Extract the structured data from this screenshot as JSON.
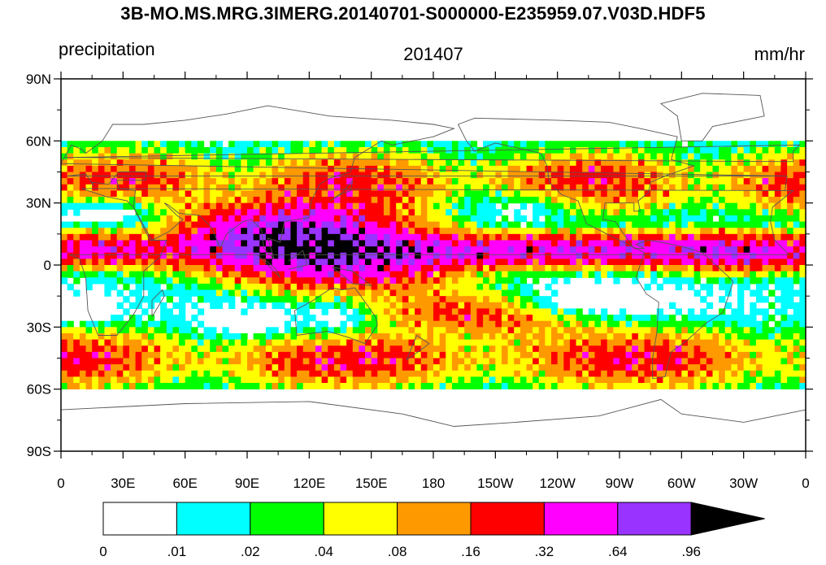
{
  "map": {
    "title": "3B-MO.MS.MRG.3IMERG.20140701-S000000-E235959.07.V03D.HDF5",
    "left_label": "precipitation",
    "center_label": "201407",
    "right_label": "mm/hr",
    "projection": "cylindrical equidistant",
    "lat_range": [
      -90,
      90
    ],
    "lon_range": [
      0,
      360
    ],
    "data_lat_range": [
      -60,
      60
    ],
    "y_ticks": [
      {
        "lat": 90,
        "label": "90N"
      },
      {
        "lat": 60,
        "label": "60N"
      },
      {
        "lat": 30,
        "label": "30N"
      },
      {
        "lat": 0,
        "label": "0"
      },
      {
        "lat": -30,
        "label": "30S"
      },
      {
        "lat": -60,
        "label": "60S"
      },
      {
        "lat": -90,
        "label": "90S"
      }
    ],
    "x_ticks": [
      {
        "lon": 0,
        "label": "0"
      },
      {
        "lon": 30,
        "label": "30E"
      },
      {
        "lon": 60,
        "label": "60E"
      },
      {
        "lon": 90,
        "label": "90E"
      },
      {
        "lon": 120,
        "label": "120E"
      },
      {
        "lon": 150,
        "label": "150E"
      },
      {
        "lon": 180,
        "label": "180"
      },
      {
        "lon": 210,
        "label": "150W"
      },
      {
        "lon": 240,
        "label": "120W"
      },
      {
        "lon": 270,
        "label": "90W"
      },
      {
        "lon": 300,
        "label": "60W"
      },
      {
        "lon": 330,
        "label": "30W"
      },
      {
        "lon": 360,
        "label": "0"
      }
    ]
  },
  "colorbar": {
    "colors": [
      "#ffffff",
      "#00ffff",
      "#00ff00",
      "#ffff00",
      "#ff9900",
      "#ff0000",
      "#ff00ff",
      "#9933ff",
      "#000000"
    ],
    "labels": [
      "0",
      ".01",
      ".02",
      ".04",
      ".08",
      ".16",
      ".32",
      ".64",
      ".96"
    ]
  }
}
